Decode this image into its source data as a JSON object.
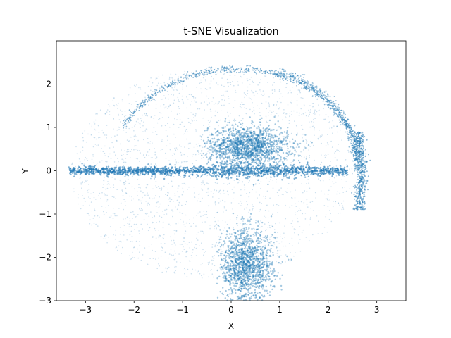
{
  "chart_data": {
    "type": "scatter",
    "title": "t-SNE Visualization",
    "xlabel": "X",
    "ylabel": "Y",
    "xlim": [
      -3.6,
      3.6
    ],
    "ylim": [
      -3.0,
      3.0
    ],
    "xticks": [
      -3,
      -2,
      -1,
      0,
      1,
      2,
      3
    ],
    "yticks": [
      -3,
      -2,
      -1,
      0,
      1,
      2
    ],
    "xtick_labels": [
      "−3",
      "−2",
      "−1",
      "0",
      "1",
      "2",
      "3"
    ],
    "ytick_labels": [
      "−3",
      "−2",
      "−1",
      "0",
      "1",
      "2"
    ],
    "grid": false,
    "point_color": "#1f77b4",
    "series": [
      {
        "structures": [
          {
            "kind": "dense_band",
            "x_range": [
              -3.35,
              2.4
            ],
            "y_center": 0.0,
            "y_spread": 0.06
          },
          {
            "kind": "dense_cluster",
            "x_range": [
              -0.45,
              1.4
            ],
            "y_range": [
              0.0,
              1.0
            ],
            "peak_x": 0.35,
            "peak_y": 0.55
          },
          {
            "kind": "dense_cluster",
            "x_range": [
              0.0,
              1.3
            ],
            "y_range": [
              -2.6,
              -0.9
            ],
            "peak_x": 0.3,
            "peak_y": -2.2
          },
          {
            "kind": "upper_arc",
            "x_range": [
              -2.5,
              2.3
            ],
            "y_peak": 2.45
          },
          {
            "kind": "right_band",
            "x": 2.7,
            "y_range": [
              -0.9,
              0.9
            ]
          },
          {
            "kind": "diffuse_ellipse",
            "x_range": [
              -3.3,
              2.5
            ],
            "y_range": [
              -2.5,
              2.4
            ]
          }
        ]
      }
    ]
  }
}
